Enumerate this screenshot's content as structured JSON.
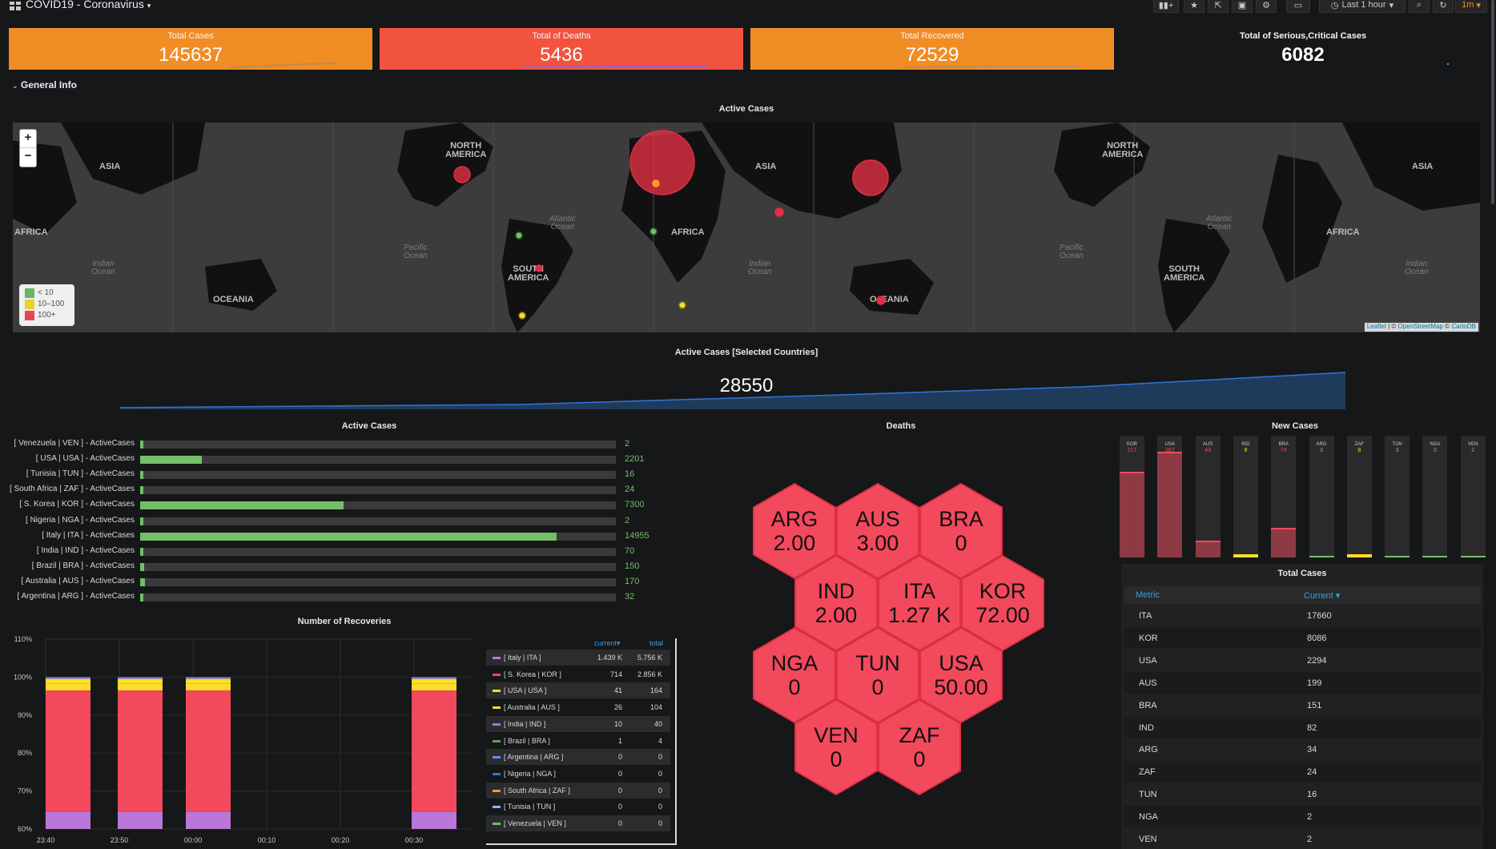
{
  "dashboard": {
    "title": "COVID19 - Coronavirus"
  },
  "toolbar": {
    "time_range": "Last 1 hour",
    "refresh_interval": "1m"
  },
  "stats": [
    {
      "id": "total-cases",
      "label": "Total Cases",
      "value": "145637",
      "color": "#f08d25"
    },
    {
      "id": "total-deaths",
      "label": "Total of Deaths",
      "value": "5436",
      "color": "#f2533f"
    },
    {
      "id": "total-recovered",
      "label": "Total Recovered",
      "value": "72529",
      "color": "#f08d25"
    },
    {
      "id": "serious-critical",
      "label": "Total of Serious,Critical Cases",
      "value": "6082",
      "color": "#161719"
    }
  ],
  "row": {
    "title": "General Info"
  },
  "map_panel": {
    "title": "Active Cases",
    "zoom_in": "+",
    "zoom_out": "−",
    "legend": [
      {
        "label": "< 10",
        "color": "#73bf69"
      },
      {
        "label": "10–100",
        "color": "#fade2a"
      },
      {
        "label": "100+",
        "color": "#f2495c"
      }
    ],
    "attribution": {
      "leaflet": "Leaflet",
      "sep1": " | © ",
      "osm": "OpenStreetMap",
      "sep2": " © ",
      "carto": "CartoDB"
    },
    "labels": {
      "north_america": "NORTH\nAMERICA",
      "asia": "ASIA",
      "africa": "AFRICA",
      "south_america": "SOUTH\nAMERICA",
      "oceania": "OCEANIA",
      "oceania_split": "O",
      "oceania_rest": "EANIA",
      "atlantic": "Atlantic\nOcean",
      "pacific": "Pacific\nOcean",
      "indian": "Indian\nOcean"
    }
  },
  "selected_panel": {
    "title": "Active Cases [Selected Countries]",
    "value": "28550"
  },
  "active_cases": {
    "title": "Active Cases",
    "max": 14955,
    "rows": [
      {
        "label": "[ Venezuela | VEN ] - ActiveCases",
        "value": 2
      },
      {
        "label": "[ USA | USA ] - ActiveCases",
        "value": 2201
      },
      {
        "label": "[ Tunisia | TUN ] - ActiveCases",
        "value": 16
      },
      {
        "label": "[ South Africa | ZAF ] - ActiveCases",
        "value": 24
      },
      {
        "label": "[ S. Korea | KOR ] - ActiveCases",
        "value": 7300
      },
      {
        "label": "[ Nigeria | NGA ] - ActiveCases",
        "value": 2
      },
      {
        "label": "[ Italy | ITA ] - ActiveCases",
        "value": 14955
      },
      {
        "label": "[ India | IND ] - ActiveCases",
        "value": 70
      },
      {
        "label": "[ Brazil | BRA ] - ActiveCases",
        "value": 150
      },
      {
        "label": "[ Australia | AUS ] - ActiveCases",
        "value": 170
      },
      {
        "label": "[ Argentina | ARG ] - ActiveCases",
        "value": 32
      }
    ]
  },
  "recoveries": {
    "title": "Number of Recoveries",
    "y_ticks": [
      "110%",
      "100%",
      "90%",
      "80%",
      "70%",
      "60%"
    ],
    "x_ticks": [
      "23:40",
      "23:50",
      "00:00",
      "00:10",
      "00:20",
      "00:30"
    ],
    "legend_headers": {
      "current": "current",
      "total": "total"
    },
    "legend": [
      {
        "name": "[ Italy | ITA ]",
        "color": "#b877d9",
        "current": "1.439 K",
        "total": "5.756 K"
      },
      {
        "name": "[ S. Korea | KOR ]",
        "color": "#f2495c",
        "current": "714",
        "total": "2.856 K"
      },
      {
        "name": "[ USA | USA ]",
        "color": "#fade2a",
        "current": "41",
        "total": "164"
      },
      {
        "name": "[ Australia | AUS ]",
        "color": "#fade2a",
        "current": "26",
        "total": "104"
      },
      {
        "name": "[ India | IND ]",
        "color": "#8f7ee0",
        "current": "10",
        "total": "40"
      },
      {
        "name": "[ Brazil | BRA ]",
        "color": "#56a64b",
        "current": "1",
        "total": "4"
      },
      {
        "name": "[ Argentina | ARG ]",
        "color": "#5794f2",
        "current": "0",
        "total": "0"
      },
      {
        "name": "[ Nigeria | NGA ]",
        "color": "#3274d9",
        "current": "0",
        "total": "0"
      },
      {
        "name": "[ South Africa | ZAF ]",
        "color": "#ff9830",
        "current": "0",
        "total": "0"
      },
      {
        "name": "[ Tunisia | TUN ]",
        "color": "#8ab8ff",
        "current": "0",
        "total": "0"
      },
      {
        "name": "[ Venezuela | VEN ]",
        "color": "#73bf69",
        "current": "0",
        "total": "0"
      }
    ]
  },
  "deaths": {
    "title": "Deaths",
    "hexes": [
      {
        "code": "ARG",
        "value": "2.00"
      },
      {
        "code": "AUS",
        "value": "3.00"
      },
      {
        "code": "BRA",
        "value": "0"
      },
      {
        "code": "IND",
        "value": "2.00"
      },
      {
        "code": "ITA",
        "value": "1.27 K"
      },
      {
        "code": "KOR",
        "value": "72.00"
      },
      {
        "code": "NGA",
        "value": "0"
      },
      {
        "code": "TUN",
        "value": "0"
      },
      {
        "code": "USA",
        "value": "50.00"
      },
      {
        "code": "VEN",
        "value": "0"
      },
      {
        "code": "ZAF",
        "value": "0"
      }
    ]
  },
  "new_cases": {
    "title": "New Cases",
    "max": 267,
    "gauges": [
      {
        "code": "KOR",
        "value": 217,
        "color": "#f2495c"
      },
      {
        "code": "USA",
        "value": 267,
        "color": "#f2495c"
      },
      {
        "code": "AUS",
        "value": 43,
        "color": "#f2495c"
      },
      {
        "code": "IND",
        "value": 8,
        "color": "#fade2a"
      },
      {
        "code": "BRA",
        "value": 74,
        "color": "#f2495c"
      },
      {
        "code": "ARG",
        "value": 3,
        "color": "#73bf69"
      },
      {
        "code": "ZAF",
        "value": 8,
        "color": "#fade2a"
      },
      {
        "code": "TUN",
        "value": 3,
        "color": "#73bf69"
      },
      {
        "code": "NGA",
        "value": 0,
        "color": "#73bf69"
      },
      {
        "code": "VEN",
        "value": 2,
        "color": "#73bf69"
      }
    ]
  },
  "total_cases": {
    "title": "Total Cases",
    "col_metric": "Metric",
    "col_current": "Current",
    "rows": [
      {
        "metric": "ITA",
        "current": "17660"
      },
      {
        "metric": "KOR",
        "current": "8086"
      },
      {
        "metric": "USA",
        "current": "2294"
      },
      {
        "metric": "AUS",
        "current": "199"
      },
      {
        "metric": "BRA",
        "current": "151"
      },
      {
        "metric": "IND",
        "current": "82"
      },
      {
        "metric": "ARG",
        "current": "34"
      },
      {
        "metric": "ZAF",
        "current": "24"
      },
      {
        "metric": "TUN",
        "current": "16"
      },
      {
        "metric": "NGA",
        "current": "2"
      },
      {
        "metric": "VEN",
        "current": "2"
      }
    ]
  }
}
